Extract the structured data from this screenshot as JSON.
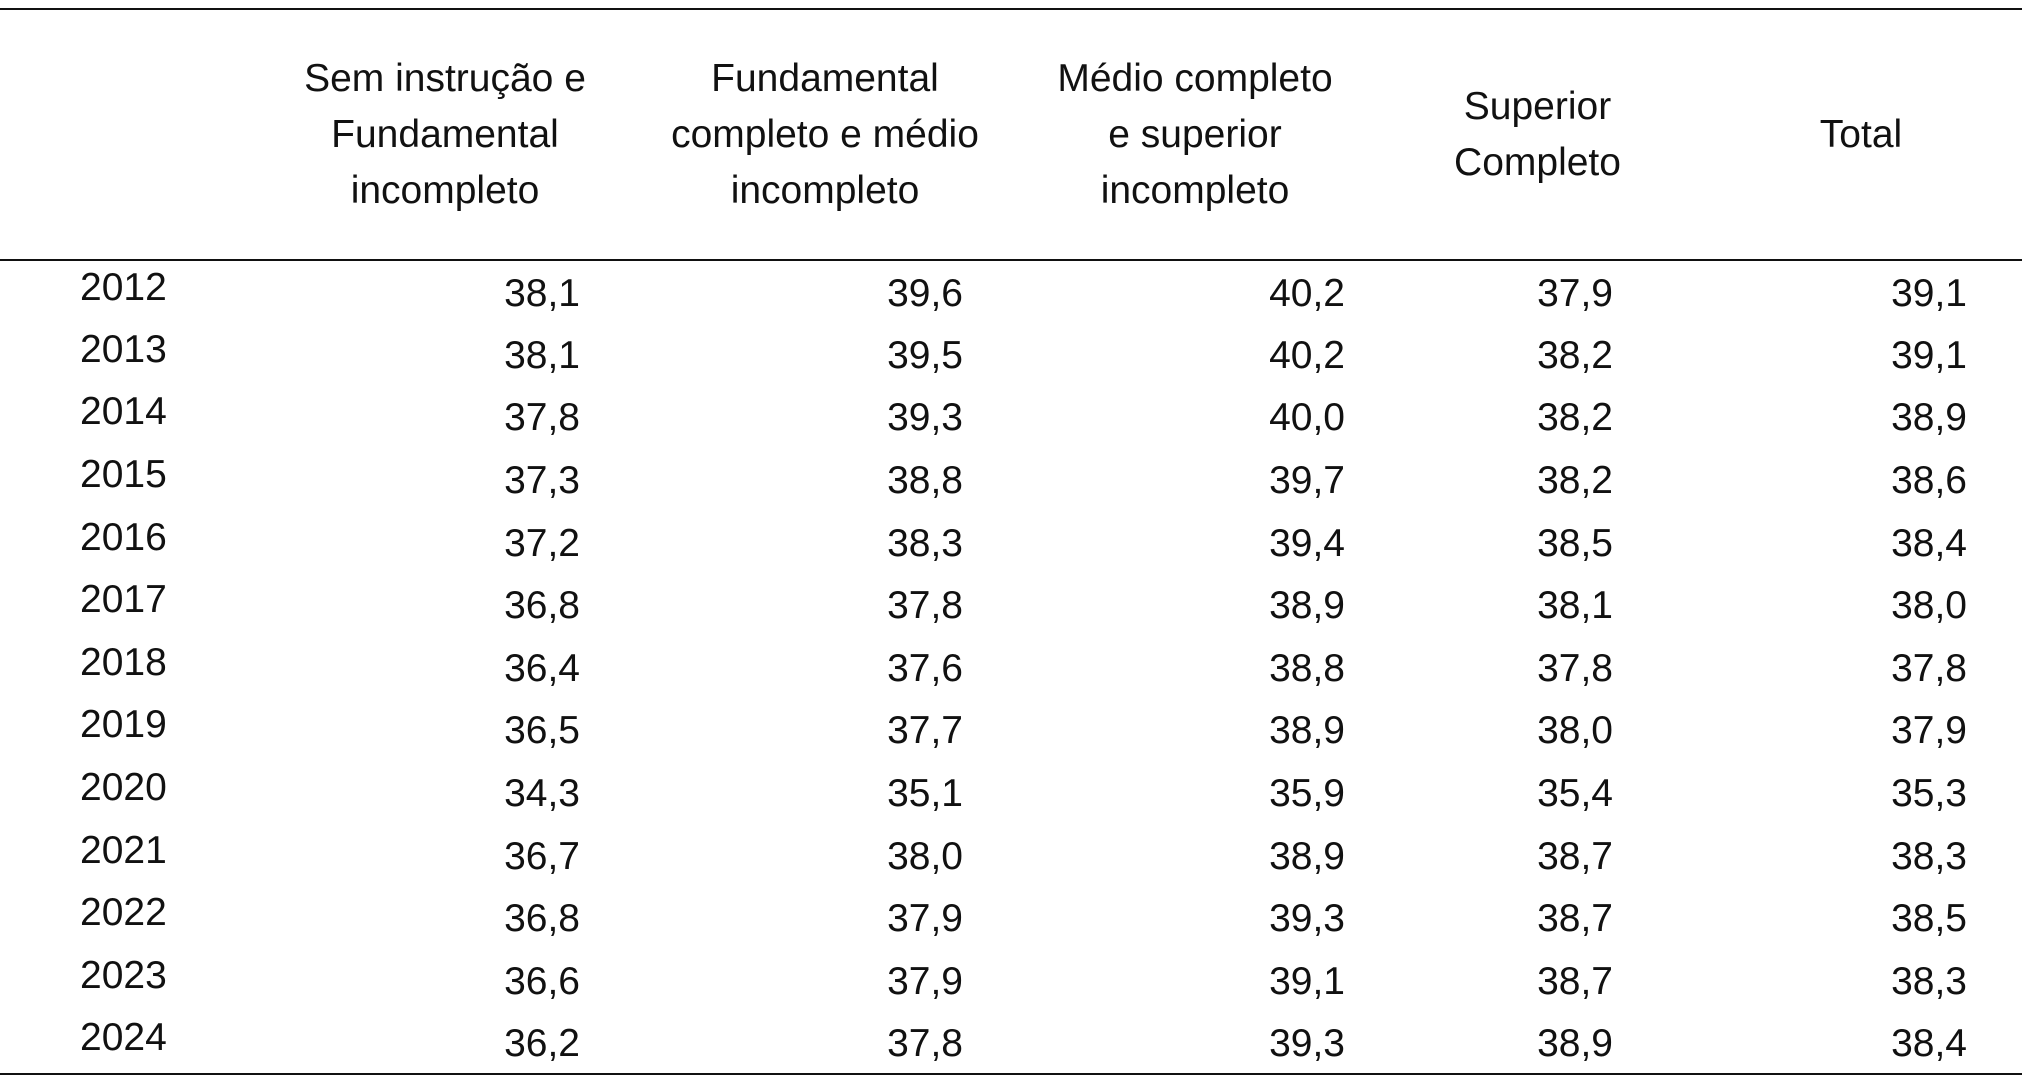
{
  "table": {
    "headers": [
      "",
      "Sem instrução e\nFundamental\nincompleto",
      "Fundamental\ncompleto e médio\nincompleto",
      "Médio completo\ne superior\nincompleto",
      "Superior\nCompleto",
      "Total"
    ],
    "rows": [
      [
        "2012",
        "38,1",
        "39,6",
        "40,2",
        "37,9",
        "39,1"
      ],
      [
        "2013",
        "38,1",
        "39,5",
        "40,2",
        "38,2",
        "39,1"
      ],
      [
        "2014",
        "37,8",
        "39,3",
        "40,0",
        "38,2",
        "38,9"
      ],
      [
        "2015",
        "37,3",
        "38,8",
        "39,7",
        "38,2",
        "38,6"
      ],
      [
        "2016",
        "37,2",
        "38,3",
        "39,4",
        "38,5",
        "38,4"
      ],
      [
        "2017",
        "36,8",
        "37,8",
        "38,9",
        "38,1",
        "38,0"
      ],
      [
        "2018",
        "36,4",
        "37,6",
        "38,8",
        "37,8",
        "37,8"
      ],
      [
        "2019",
        "36,5",
        "37,7",
        "38,9",
        "38,0",
        "37,9"
      ],
      [
        "2020",
        "34,3",
        "35,1",
        "35,9",
        "35,4",
        "35,3"
      ],
      [
        "2021",
        "36,7",
        "38,0",
        "38,9",
        "38,7",
        "38,3"
      ],
      [
        "2022",
        "36,8",
        "37,9",
        "39,3",
        "38,7",
        "38,5"
      ],
      [
        "2023",
        "36,6",
        "37,9",
        "39,1",
        "38,7",
        "38,3"
      ],
      [
        "2024",
        "36,2",
        "37,8",
        "39,3",
        "38,9",
        "38,4"
      ]
    ]
  }
}
